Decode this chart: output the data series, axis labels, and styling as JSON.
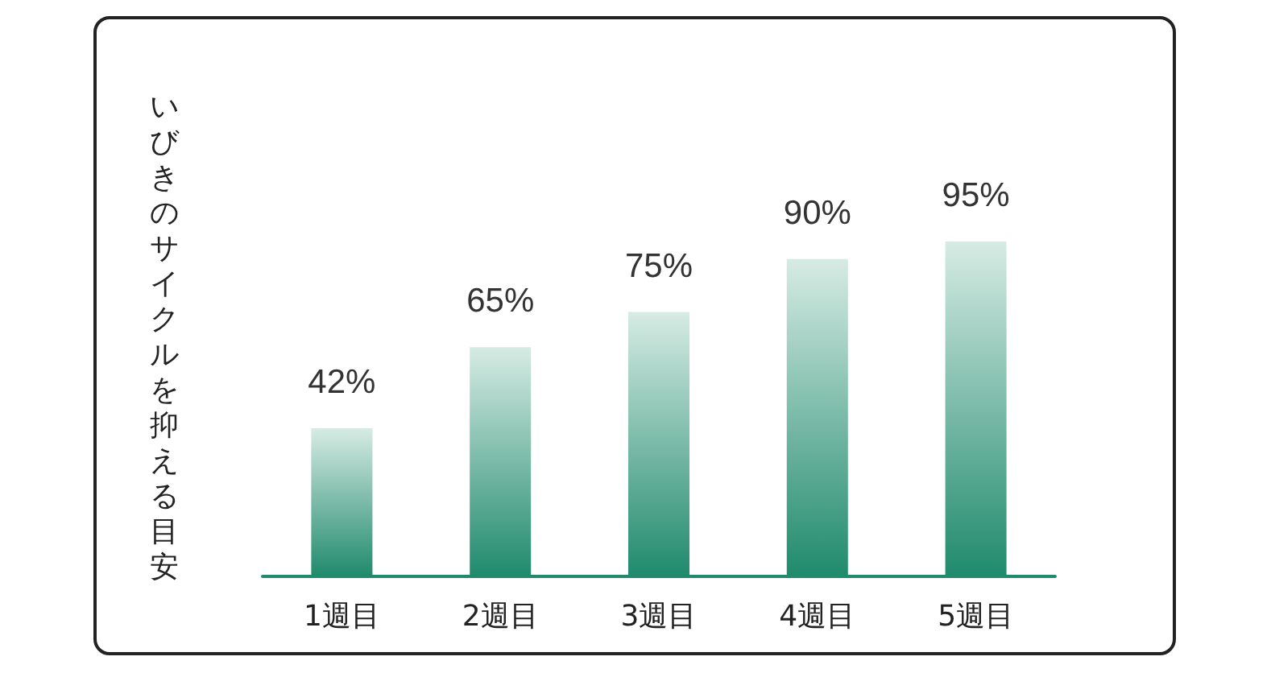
{
  "chart_data": {
    "type": "bar",
    "ylabel": "いびきのサイクルを抑える目安",
    "categories": [
      "1週目",
      "2週目",
      "3週目",
      "4週目",
      "5週目"
    ],
    "values": [
      42,
      65,
      75,
      90,
      95
    ],
    "color": "#1f8a6c",
    "data_labels": true,
    "value_labels": [
      "42%",
      "65%",
      "75%",
      "90%",
      "95%"
    ]
  }
}
